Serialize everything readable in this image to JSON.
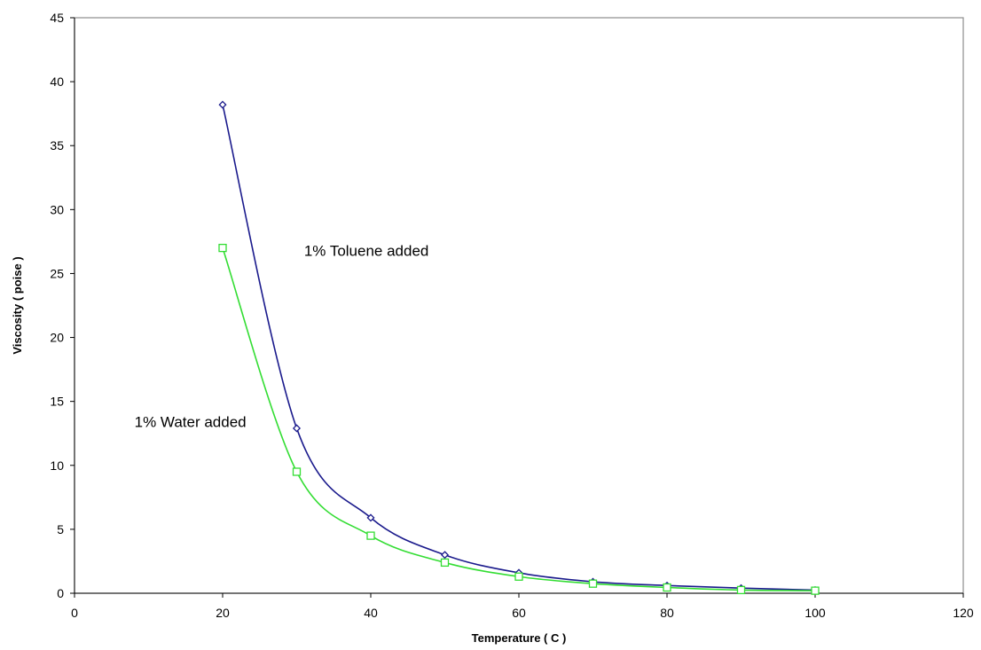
{
  "chart_data": {
    "type": "line",
    "title": "",
    "xlabel": "Temperature ( C )",
    "ylabel": "Viscosity ( poise )",
    "xlim": [
      0,
      120
    ],
    "ylim": [
      0,
      45
    ],
    "xticks": [
      0,
      20,
      40,
      60,
      80,
      100,
      120
    ],
    "yticks": [
      0,
      5,
      10,
      15,
      20,
      25,
      30,
      35,
      40,
      45
    ],
    "grid": false,
    "smooth": true,
    "series": [
      {
        "color": "#1a1a8c",
        "marker": "diamond",
        "x": [
          20,
          30,
          40,
          50,
          60,
          70,
          80,
          90,
          100
        ],
        "y": [
          38.2,
          12.9,
          5.9,
          3.0,
          1.6,
          0.9,
          0.6,
          0.4,
          0.25
        ]
      },
      {
        "color": "#33dd33",
        "marker": "square",
        "x": [
          20,
          30,
          40,
          50,
          60,
          70,
          80,
          90,
          100
        ],
        "y": [
          27.0,
          9.5,
          4.5,
          2.4,
          1.3,
          0.75,
          0.45,
          0.25,
          0.2
        ]
      }
    ],
    "annotations": [
      {
        "text": "1% Toluene added",
        "x": 31,
        "y": 26.4
      },
      {
        "text": "1% Water added",
        "x": 8.1,
        "y": 13.0
      }
    ]
  }
}
